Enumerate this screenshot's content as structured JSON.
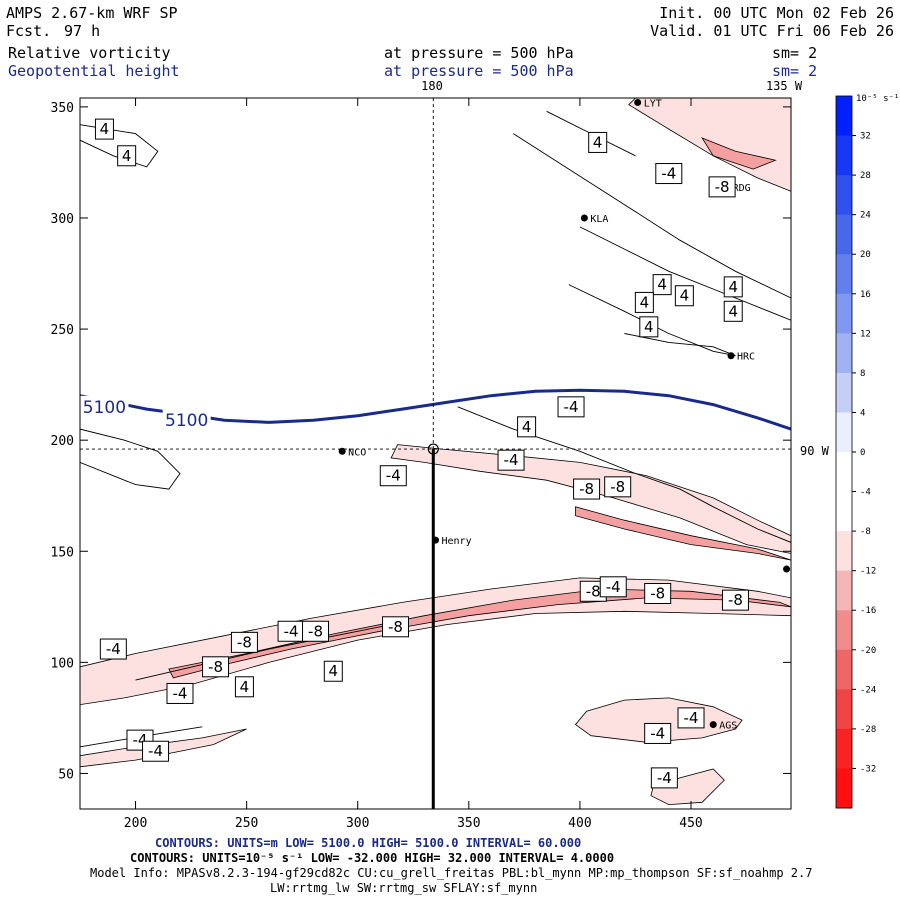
{
  "header": {
    "left_title": "AMPS 2.67-km WRF SP",
    "fcst_label": "Fcst.",
    "fcst_value": "97 h",
    "init": "Init. 00 UTC Mon 02 Feb 26",
    "valid": "Valid. 01 UTC Fri 06 Feb 26",
    "field1_name": "Relative vorticity",
    "field1_level": "at pressure =  500 hPa",
    "field1_smooth": "sm= 2",
    "field2_name": "Geopotential height",
    "field2_level": "at pressure =  500 hPa",
    "field2_smooth": "sm= 2"
  },
  "colors": {
    "ink": "#000000",
    "navy": "#1a2a8a",
    "colorbar_blue": "#0020ff",
    "colorbar_red": "#ff1010",
    "fill_light": "#fde0e0",
    "fill_mid": "#f4a0a0"
  },
  "chart_data": {
    "type": "contour-map",
    "x_axis": {
      "range": [
        175,
        495
      ],
      "ticks": [
        200,
        250,
        300,
        350,
        400,
        450
      ]
    },
    "y_axis": {
      "range": [
        34,
        354
      ],
      "ticks": [
        50,
        100,
        150,
        200,
        250,
        300,
        350
      ]
    },
    "meridian_labels": {
      "top": "180",
      "top_right": "135 W",
      "right": "90 W"
    },
    "crosshair": {
      "x": 334,
      "y": 196
    },
    "cross_section_line": {
      "x": 334,
      "y_from": 34,
      "y_to": 196
    },
    "stations": [
      {
        "name": "NCO",
        "x": 293,
        "y": 195
      },
      {
        "name": "Henry",
        "x": 335,
        "y": 155
      },
      {
        "name": "KLA",
        "x": 402,
        "y": 300
      },
      {
        "name": "HRC",
        "x": 468,
        "y": 238
      },
      {
        "name": "RDG",
        "x": 466,
        "y": 314
      },
      {
        "name": "AGS",
        "x": 460,
        "y": 72
      },
      {
        "name": "LYT",
        "x": 426,
        "y": 352
      },
      {
        "name": "",
        "x": 493,
        "y": 142
      }
    ],
    "height_contour": {
      "value_label": "5100",
      "points": [
        [
          175,
          220
        ],
        [
          190,
          217
        ],
        [
          205,
          214
        ],
        [
          220,
          212
        ],
        [
          240,
          209
        ],
        [
          260,
          208
        ],
        [
          280,
          209
        ],
        [
          300,
          211
        ],
        [
          320,
          214
        ],
        [
          340,
          217
        ],
        [
          360,
          220
        ],
        [
          380,
          222
        ],
        [
          400,
          222.5
        ],
        [
          420,
          222
        ],
        [
          440,
          220
        ],
        [
          460,
          216
        ],
        [
          480,
          210
        ],
        [
          495,
          205
        ]
      ],
      "labels": [
        {
          "x": 186,
          "y": 215
        },
        {
          "x": 223,
          "y": 209
        }
      ]
    },
    "vorticity_neg4_regions": [
      [
        [
          175,
          98
        ],
        [
          200,
          104
        ],
        [
          240,
          112
        ],
        [
          280,
          120
        ],
        [
          320,
          127
        ],
        [
          360,
          133
        ],
        [
          400,
          138
        ],
        [
          440,
          137
        ],
        [
          480,
          132
        ],
        [
          495,
          129
        ],
        [
          495,
          121
        ],
        [
          460,
          122
        ],
        [
          420,
          123
        ],
        [
          380,
          122
        ],
        [
          340,
          117
        ],
        [
          300,
          110
        ],
        [
          260,
          100
        ],
        [
          225,
          90
        ],
        [
          195,
          84
        ],
        [
          175,
          81
        ]
      ],
      [
        [
          175,
          58
        ],
        [
          200,
          62
        ],
        [
          230,
          66
        ],
        [
          250,
          70
        ],
        [
          235,
          63
        ],
        [
          200,
          56
        ],
        [
          175,
          53
        ]
      ],
      [
        [
          318,
          198
        ],
        [
          338,
          196
        ],
        [
          370,
          193
        ],
        [
          400,
          190
        ],
        [
          430,
          184
        ],
        [
          460,
          174
        ],
        [
          480,
          164
        ],
        [
          495,
          157
        ],
        [
          495,
          149
        ],
        [
          475,
          153
        ],
        [
          445,
          165
        ],
        [
          415,
          174
        ],
        [
          385,
          182
        ],
        [
          355,
          186
        ],
        [
          330,
          190
        ],
        [
          315,
          192
        ]
      ],
      [
        [
          422,
          351
        ],
        [
          440,
          340
        ],
        [
          460,
          328
        ],
        [
          480,
          318
        ],
        [
          495,
          312
        ],
        [
          495,
          354
        ],
        [
          425,
          354
        ]
      ],
      [
        [
          403,
          78
        ],
        [
          420,
          83
        ],
        [
          440,
          84
        ],
        [
          460,
          80
        ],
        [
          473,
          74
        ],
        [
          470,
          70
        ],
        [
          455,
          66
        ],
        [
          430,
          64
        ],
        [
          405,
          67
        ],
        [
          398,
          72
        ]
      ],
      [
        [
          433,
          44
        ],
        [
          445,
          48
        ],
        [
          460,
          52
        ],
        [
          465,
          47
        ],
        [
          455,
          37
        ],
        [
          440,
          36
        ],
        [
          432,
          40
        ]
      ]
    ],
    "vorticity_neg8_regions": [
      [
        [
          215,
          97
        ],
        [
          250,
          104
        ],
        [
          290,
          113
        ],
        [
          330,
          121
        ],
        [
          370,
          128
        ],
        [
          410,
          133
        ],
        [
          450,
          132
        ],
        [
          490,
          127
        ],
        [
          495,
          125
        ],
        [
          470,
          128
        ],
        [
          430,
          129
        ],
        [
          390,
          126
        ],
        [
          350,
          121
        ],
        [
          310,
          114
        ],
        [
          270,
          106
        ],
        [
          240,
          99
        ],
        [
          217,
          93
        ]
      ],
      [
        [
          398,
          170
        ],
        [
          420,
          164
        ],
        [
          450,
          157
        ],
        [
          480,
          151
        ],
        [
          495,
          146
        ],
        [
          480,
          149
        ],
        [
          450,
          153
        ],
        [
          420,
          160
        ],
        [
          398,
          166
        ]
      ],
      [
        [
          455,
          336
        ],
        [
          470,
          330
        ],
        [
          488,
          326
        ],
        [
          478,
          322
        ],
        [
          460,
          328
        ]
      ]
    ],
    "vorticity_pos4_lines": [
      [
        [
          175,
          190
        ],
        [
          200,
          180
        ],
        [
          215,
          178
        ],
        [
          220,
          185
        ],
        [
          210,
          195
        ],
        [
          195,
          200
        ],
        [
          175,
          205
        ]
      ],
      [
        [
          175,
          335
        ],
        [
          190,
          328
        ],
        [
          205,
          323
        ],
        [
          210,
          330
        ],
        [
          200,
          338
        ],
        [
          175,
          342
        ]
      ],
      [
        [
          345,
          215
        ],
        [
          370,
          205
        ],
        [
          400,
          195
        ],
        [
          425,
          185
        ],
        [
          445,
          178
        ],
        [
          460,
          170
        ],
        [
          480,
          160
        ],
        [
          495,
          154
        ]
      ],
      [
        [
          400,
          296
        ],
        [
          420,
          286
        ],
        [
          440,
          276
        ],
        [
          465,
          266
        ],
        [
          485,
          258
        ],
        [
          495,
          254
        ]
      ],
      [
        [
          370,
          338
        ],
        [
          395,
          322
        ],
        [
          420,
          306
        ],
        [
          445,
          290
        ],
        [
          470,
          276
        ],
        [
          495,
          264
        ]
      ],
      [
        [
          395,
          270
        ],
        [
          420,
          258
        ],
        [
          440,
          248
        ],
        [
          460,
          240
        ],
        [
          470,
          238
        ]
      ],
      [
        [
          420,
          248
        ],
        [
          440,
          244
        ],
        [
          460,
          242
        ],
        [
          470,
          238
        ]
      ],
      [
        [
          200,
          92
        ],
        [
          230,
          99
        ],
        [
          260,
          106
        ],
        [
          290,
          112
        ],
        [
          320,
          118
        ]
      ],
      [
        [
          175,
          62
        ],
        [
          205,
          67
        ],
        [
          230,
          71
        ]
      ],
      [
        [
          385,
          348
        ],
        [
          405,
          338
        ],
        [
          425,
          328
        ]
      ]
    ],
    "vorticity_labels": [
      {
        "text": "4",
        "x": 186,
        "y": 340
      },
      {
        "text": "4",
        "x": 196,
        "y": 328
      },
      {
        "text": "-4",
        "x": 190,
        "y": 106
      },
      {
        "text": "-4",
        "x": 202,
        "y": 65
      },
      {
        "text": "-4",
        "x": 209,
        "y": 60
      },
      {
        "text": "-4",
        "x": 220,
        "y": 86
      },
      {
        "text": "-8",
        "x": 236,
        "y": 98
      },
      {
        "text": "4",
        "x": 249,
        "y": 89
      },
      {
        "text": "-8",
        "x": 249,
        "y": 109
      },
      {
        "text": "-4",
        "x": 270,
        "y": 114
      },
      {
        "text": "-8",
        "x": 281,
        "y": 114
      },
      {
        "text": "4",
        "x": 289,
        "y": 96
      },
      {
        "text": "-8",
        "x": 317,
        "y": 116
      },
      {
        "text": "-4",
        "x": 316,
        "y": 184
      },
      {
        "text": "-4",
        "x": 369,
        "y": 191
      },
      {
        "text": "4",
        "x": 376,
        "y": 206
      },
      {
        "text": "-4",
        "x": 396,
        "y": 215
      },
      {
        "text": "-8",
        "x": 403,
        "y": 178
      },
      {
        "text": "-8",
        "x": 417,
        "y": 179
      },
      {
        "text": "-8",
        "x": 406,
        "y": 132
      },
      {
        "text": "-4",
        "x": 415,
        "y": 134
      },
      {
        "text": "-8",
        "x": 435,
        "y": 131
      },
      {
        "text": "-8",
        "x": 470,
        "y": 128
      },
      {
        "text": "-4",
        "x": 435,
        "y": 68
      },
      {
        "text": "-4",
        "x": 450,
        "y": 75
      },
      {
        "text": "-4",
        "x": 438,
        "y": 48
      },
      {
        "text": "4",
        "x": 408,
        "y": 334
      },
      {
        "text": "-4",
        "x": 440,
        "y": 320
      },
      {
        "text": "-8",
        "x": 464,
        "y": 314
      },
      {
        "text": "4",
        "x": 437,
        "y": 270
      },
      {
        "text": "4",
        "x": 447,
        "y": 265
      },
      {
        "text": "4",
        "x": 469,
        "y": 269
      },
      {
        "text": "4",
        "x": 469,
        "y": 258
      },
      {
        "text": "4",
        "x": 429,
        "y": 262
      },
      {
        "text": "4",
        "x": 431,
        "y": 251
      }
    ],
    "colorbar": {
      "unit": "10⁻⁵ s⁻¹",
      "tick_labels": [
        "32",
        "28",
        "24",
        "20",
        "16",
        "12",
        "8",
        "4",
        "0",
        "-4",
        "-8",
        "-12",
        "-16",
        "-20",
        "-24",
        "-28",
        "-32"
      ],
      "colors": [
        "#0020ff",
        "#1838f8",
        "#3050f0",
        "#4868ec",
        "#6080f0",
        "#8098f0",
        "#a0b2f4",
        "#c4cff8",
        "#ebeefc",
        "#ffffff",
        "#ffffff",
        "#fde0e0",
        "#f6b6b6",
        "#f08c8c",
        "#ee6666",
        "#f24444",
        "#f82424",
        "#ff1010"
      ]
    },
    "footer_line1": "CONTOURS:  UNITS=m  LOW=  5100.0        HIGH=  5100.0        INTERVAL=   60.000",
    "footer_line2": "CONTOURS:  UNITS=10⁻⁵ s⁻¹   LOW=  -32.000        HIGH=  32.000        INTERVAL=   4.0000",
    "footer_line3": "Model Info: MPASv8.2.3-194-gf29cd82c CU:cu_grell_freitas PBL:bl_mynn MP:mp_thompson SF:sf_noahmp 2.7",
    "footer_line4": "LW:rrtmg_lw SW:rrtmg_sw SFLAY:sf_mynn"
  }
}
